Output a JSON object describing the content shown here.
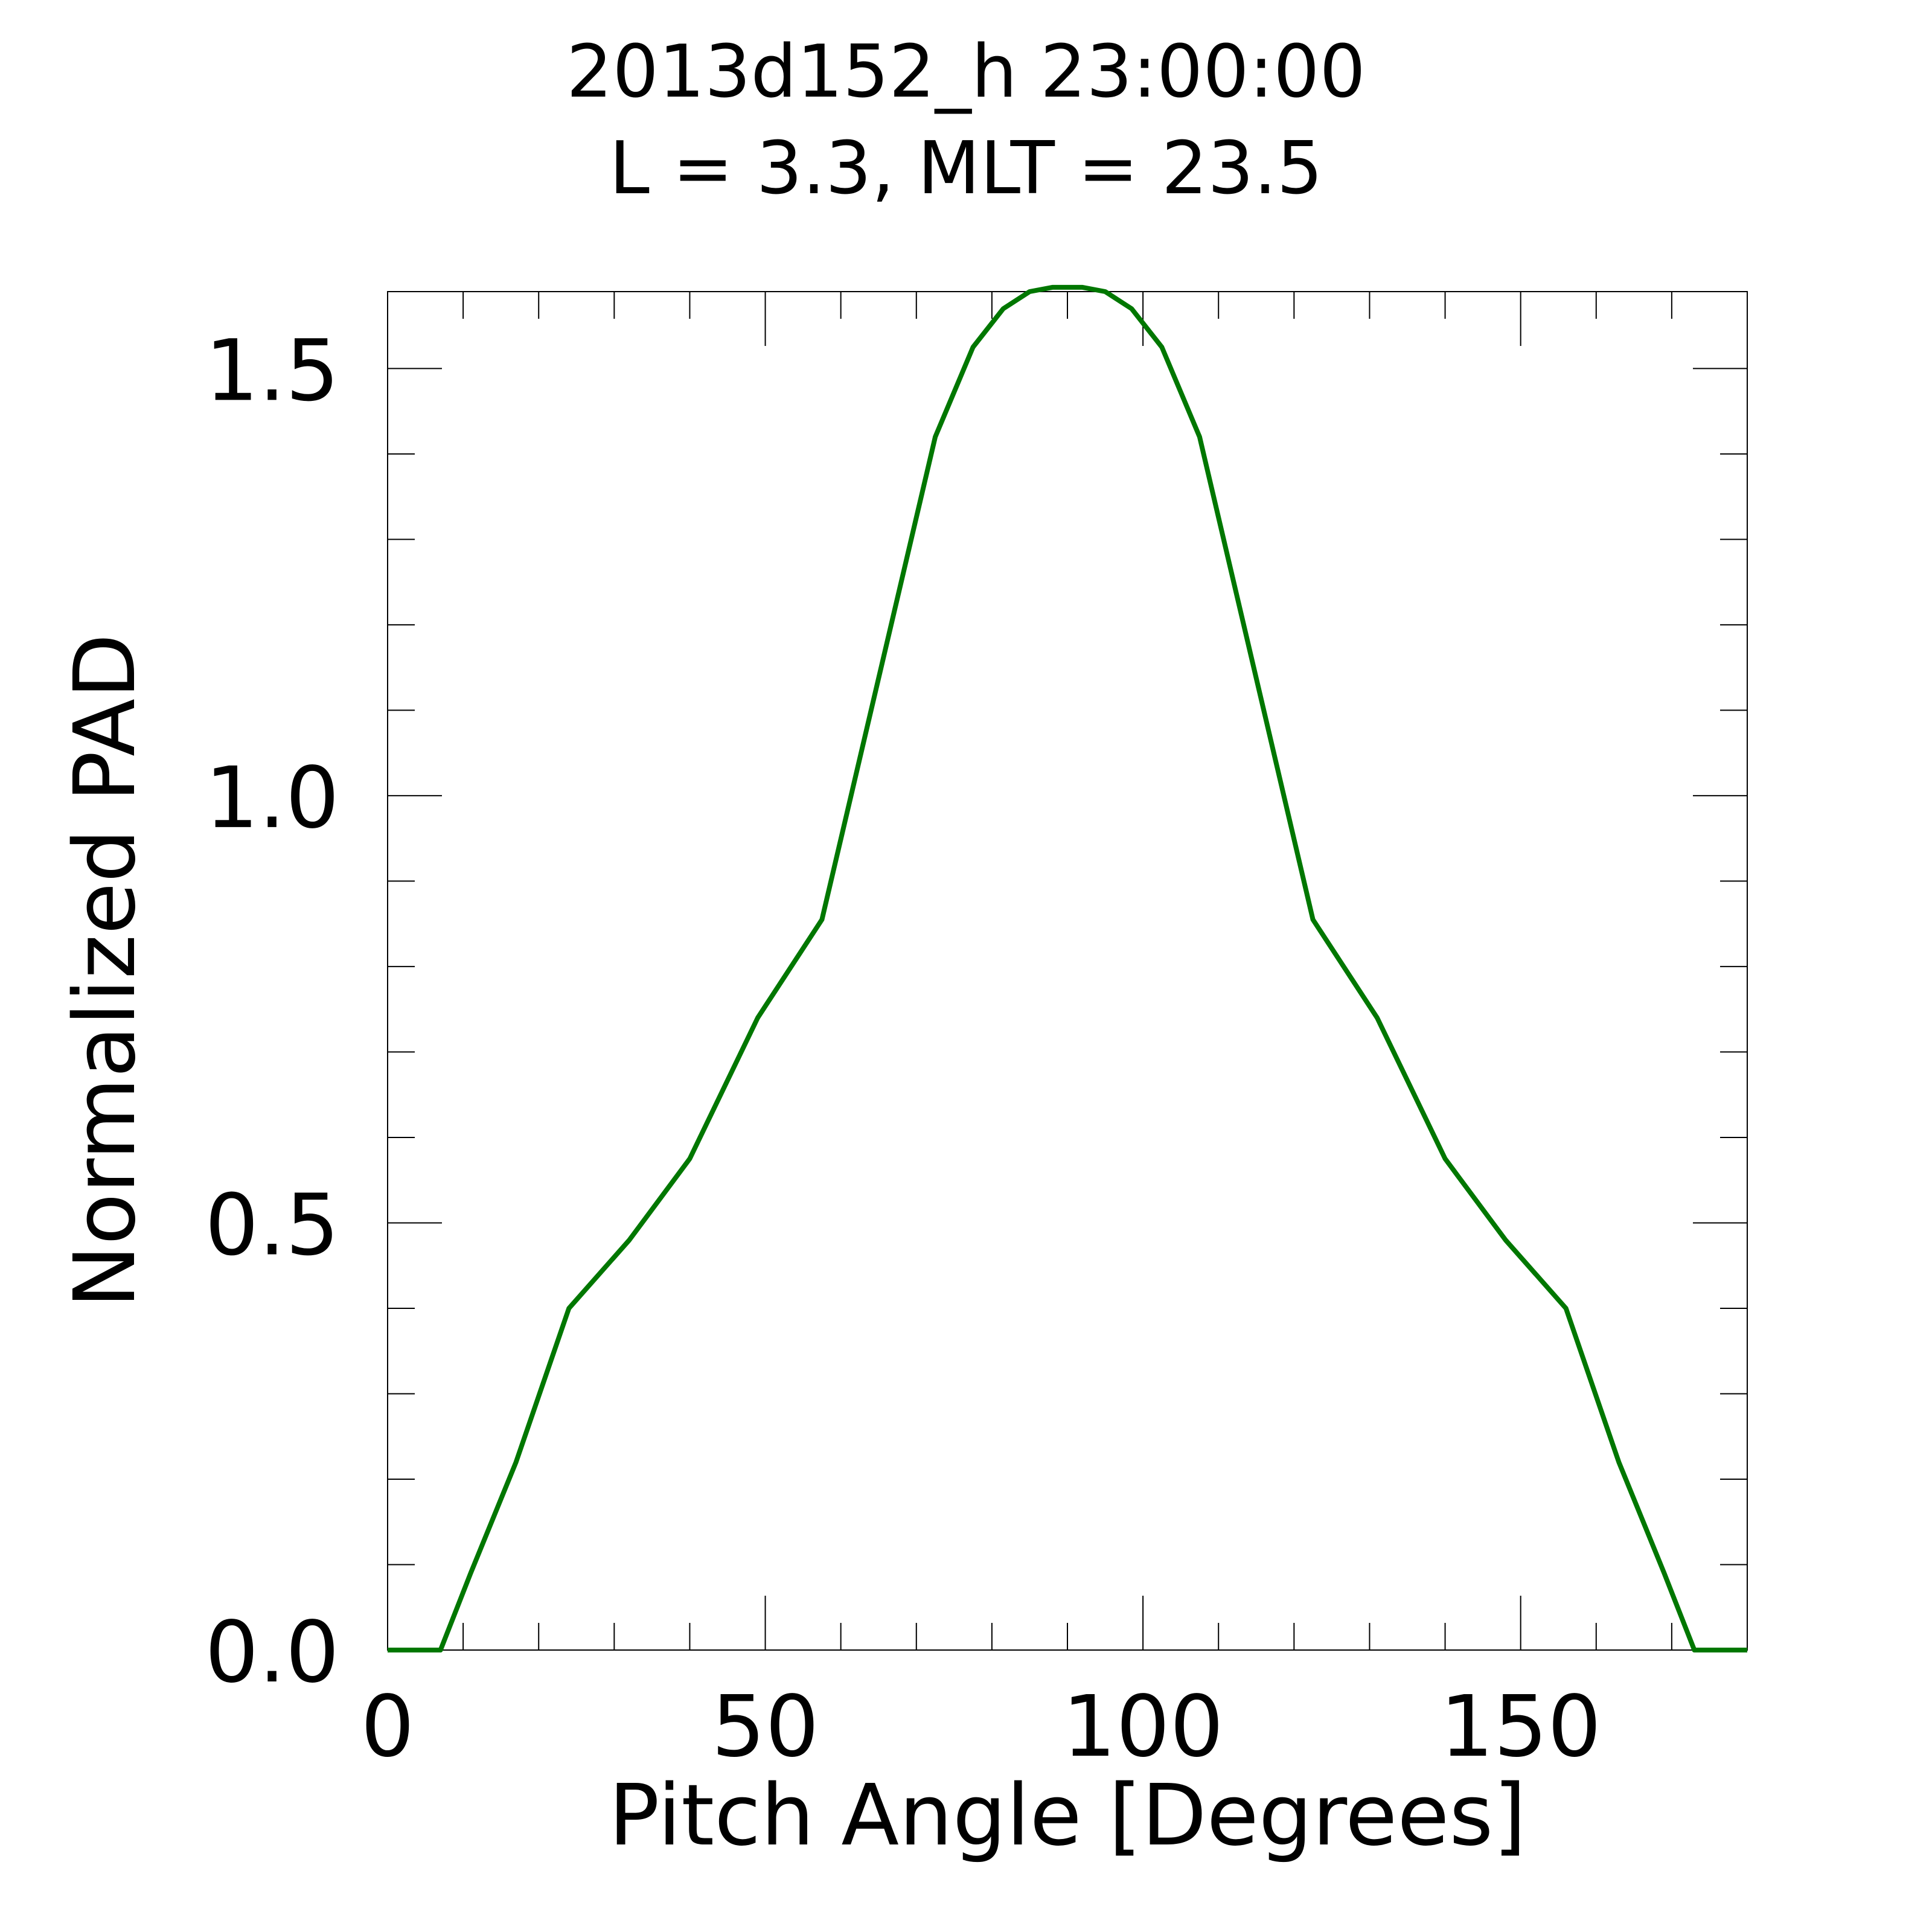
{
  "chart_data": {
    "type": "line",
    "title": "2013d152_h  23:00:00",
    "subtitle": "L = 3.3, MLT = 23.5",
    "xlabel": "Pitch Angle [Degrees]",
    "ylabel": "Normalized PAD",
    "xlim": [
      0,
      180
    ],
    "ylim": [
      0,
      1.59
    ],
    "x_major_ticks": [
      0,
      50,
      100,
      150
    ],
    "x_tick_labels": [
      "0",
      "50",
      "100",
      "150"
    ],
    "x_minor_step": 10,
    "y_major_ticks": [
      0.0,
      0.5,
      1.0,
      1.5
    ],
    "y_tick_labels": [
      "0.0",
      "0.5",
      "1.0",
      "1.5"
    ],
    "y_minor_step": 0.1,
    "grid": false,
    "line_color": "#007700",
    "series": [
      {
        "x": [
          0,
          7,
          11,
          17,
          24,
          32,
          40,
          49,
          57.5,
          72.5,
          77.5,
          81.5,
          85,
          88,
          90,
          92,
          95,
          98.5,
          102.5,
          107.5,
          122.5,
          131,
          140,
          148,
          156,
          163,
          169,
          173,
          180
        ],
        "values": [
          0,
          0,
          0.09,
          0.22,
          0.4,
          0.48,
          0.575,
          0.74,
          0.855,
          1.42,
          1.525,
          1.57,
          1.59,
          1.595,
          1.595,
          1.595,
          1.59,
          1.57,
          1.525,
          1.42,
          0.855,
          0.74,
          0.575,
          0.48,
          0.4,
          0.22,
          0.09,
          0,
          0
        ]
      }
    ]
  }
}
